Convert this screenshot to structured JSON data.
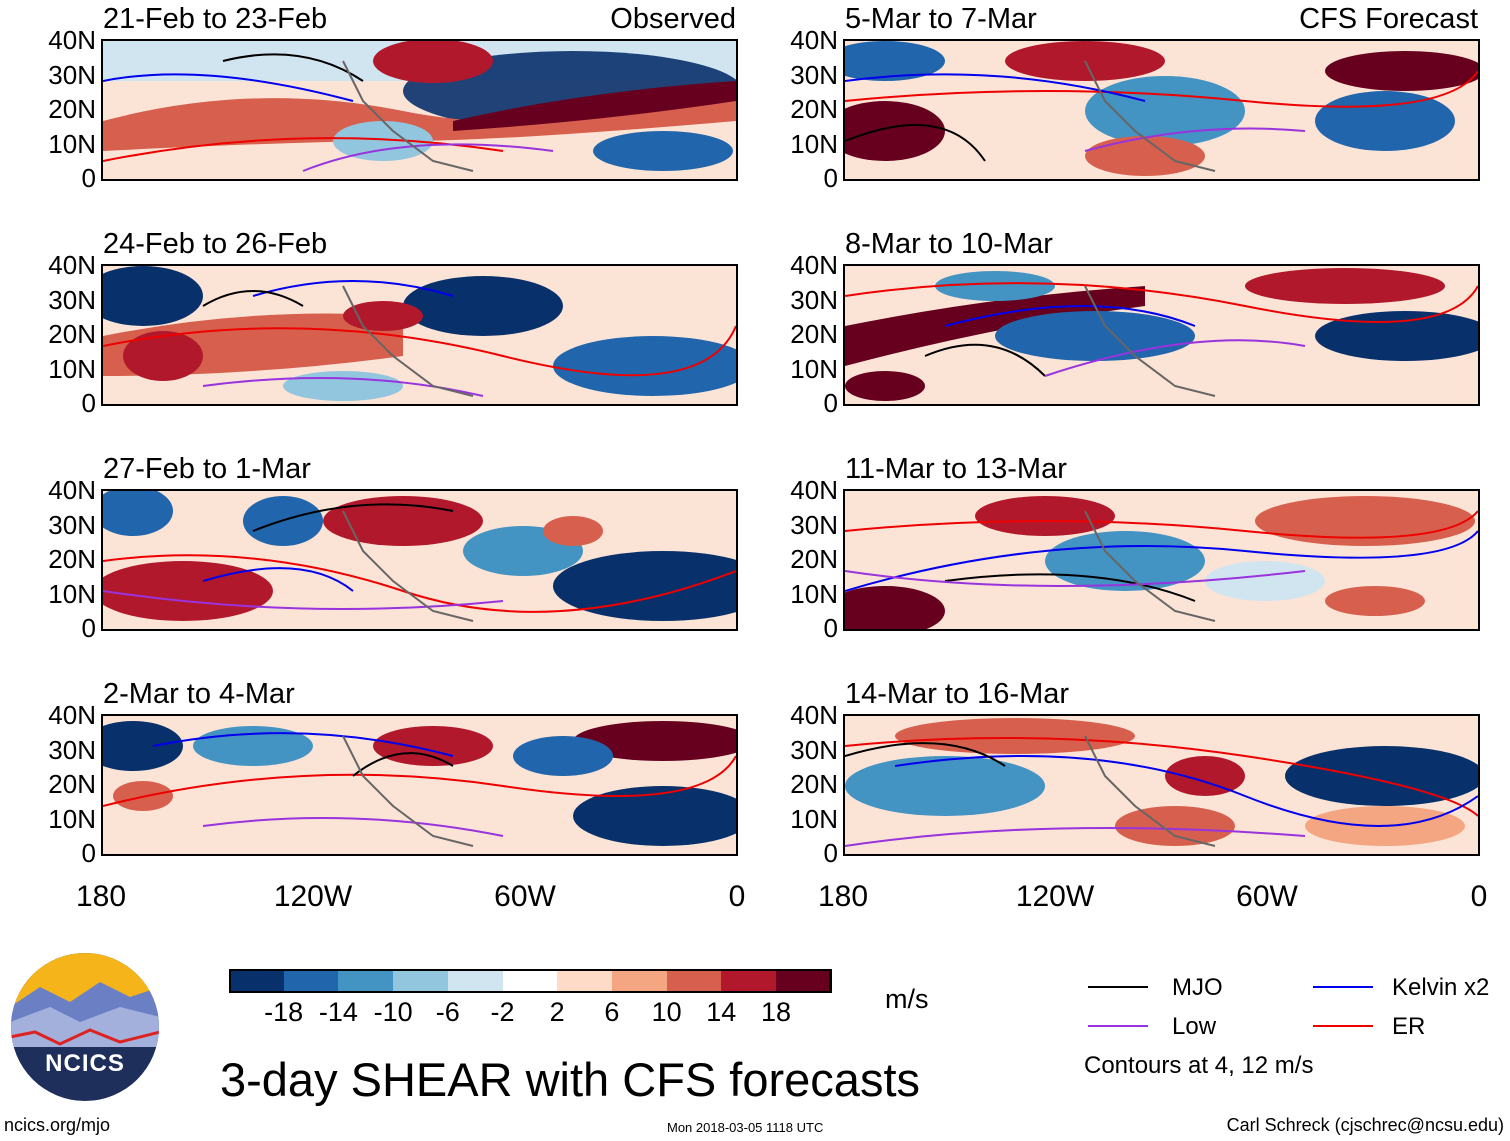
{
  "panels_observed": [
    {
      "title": "21-Feb to 23-Feb",
      "tag": "Observed"
    },
    {
      "title": "24-Feb to 26-Feb"
    },
    {
      "title": "27-Feb to 1-Mar"
    },
    {
      "title": "2-Mar to 4-Mar"
    }
  ],
  "panels_forecast": [
    {
      "title": "5-Mar to 7-Mar",
      "tag": "CFS Forecast"
    },
    {
      "title": "8-Mar to 10-Mar"
    },
    {
      "title": "11-Mar to 13-Mar"
    },
    {
      "title": "14-Mar to 16-Mar"
    }
  ],
  "lat_labels": [
    "40N",
    "30N",
    "20N",
    "10N",
    "0"
  ],
  "lon_labels": [
    "180",
    "120W",
    "60W",
    "0"
  ],
  "colorbar": {
    "labels": [
      "-18",
      "-14",
      "-10",
      "-6",
      "-2",
      "2",
      "6",
      "10",
      "14",
      "18"
    ],
    "unit": "m/s",
    "colors": [
      "#08306b",
      "#2166ac",
      "#4393c3",
      "#92c5de",
      "#d1e5f0",
      "#ffffff",
      "#fddbc7",
      "#f4a582",
      "#d6604d",
      "#b2182b",
      "#67001f"
    ]
  },
  "legend": {
    "items": [
      {
        "label": "MJO",
        "color": "#000000"
      },
      {
        "label": "Kelvin x2",
        "color": "#0000ee"
      },
      {
        "label": "Low",
        "color": "#9933dd"
      },
      {
        "label": "ER",
        "color": "#ee0000"
      }
    ],
    "note": "Contours at 4, 12 m/s"
  },
  "logo_text": "NCICS",
  "title": "3-day SHEAR with CFS forecasts",
  "footer": {
    "url": "ncics.org/mjo",
    "timestamp": "Mon 2018-03-05 1118 UTC",
    "author": "Carl Schreck (cjschrec@ncsu.edu)"
  }
}
